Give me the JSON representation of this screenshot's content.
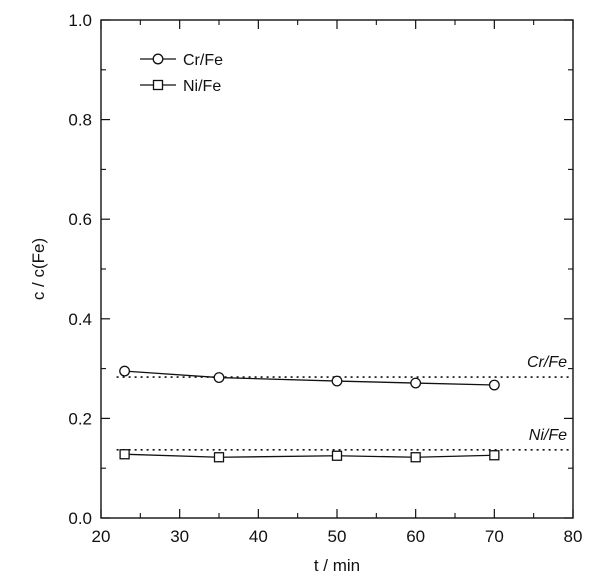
{
  "chart_data": {
    "type": "line",
    "xlabel": "t / min",
    "ylabel": "c / c(Fe)",
    "xlim": [
      20,
      80
    ],
    "ylim": [
      0.0,
      1.0
    ],
    "xticks": [
      20,
      30,
      40,
      50,
      60,
      70,
      80
    ],
    "xtick_labels": [
      "20",
      "30",
      "40",
      "50",
      "60",
      "70",
      "80"
    ],
    "yticks": [
      0.0,
      0.2,
      0.4,
      0.6,
      0.8,
      1.0
    ],
    "ytick_labels": [
      "0.0",
      "0.2",
      "0.4",
      "0.6",
      "0.8",
      "1.0"
    ],
    "grid": false,
    "legend_position": "top-left",
    "series": [
      {
        "name": "Cr/Fe",
        "marker": "circle",
        "x": [
          23,
          35,
          50,
          60,
          70
        ],
        "y": [
          0.295,
          0.282,
          0.275,
          0.271,
          0.267
        ]
      },
      {
        "name": "Ni/Fe",
        "marker": "square",
        "x": [
          23,
          35,
          50,
          60,
          70
        ],
        "y": [
          0.128,
          0.122,
          0.125,
          0.122,
          0.126
        ]
      }
    ],
    "reference_lines": [
      {
        "label": "Cr/Fe",
        "y": 0.283,
        "style": "dotted"
      },
      {
        "label": "Ni/Fe",
        "y": 0.137,
        "style": "dotted"
      }
    ]
  }
}
